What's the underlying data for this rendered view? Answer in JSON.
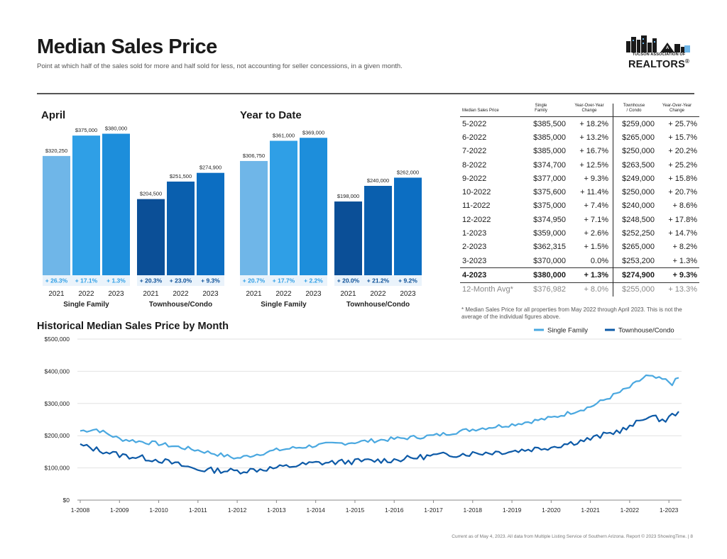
{
  "page": {
    "title": "Median Sales Price",
    "subtitle": "Point at which half of the sales sold for more and half sold for less, not accounting for seller concessions, in a given month.",
    "logo_line1": "TUCSON ASSOCIATION OF",
    "logo_line2": "REALTORS",
    "logo_mark": "®",
    "footer": "Current as of May 4, 2023. All data from Multiple Listing Service of Southern Arizona. Report © 2023 ShowingTime. | 8"
  },
  "colors": {
    "sf_light": "#6fb6e8",
    "sf_mid": "#2f9fe6",
    "sf_dark": "#1d8edb",
    "tc_dark": "#0b4f97",
    "tc_mid": "#0a5fae",
    "tc_light": "#0c6ec2",
    "sf_line": "#4aa8e0",
    "tc_line": "#0d5aa7"
  },
  "chart_data": [
    {
      "type": "bar",
      "title": "April",
      "groups": [
        {
          "name": "Single Family",
          "categories": [
            "2021",
            "2022",
            "2023"
          ],
          "values": [
            320250,
            375000,
            380000
          ],
          "labels": [
            "$320,250",
            "$375,000",
            "$380,000"
          ],
          "changes": [
            "+ 26.3%",
            "+ 17.1%",
            "+ 1.3%"
          ]
        },
        {
          "name": "Townhouse/Condo",
          "categories": [
            "2021",
            "2022",
            "2023"
          ],
          "values": [
            204500,
            251500,
            274900
          ],
          "labels": [
            "$204,500",
            "$251,500",
            "$274,900"
          ],
          "changes": [
            "+ 20.3%",
            "+ 23.0%",
            "+ 9.3%"
          ]
        }
      ]
    },
    {
      "type": "bar",
      "title": "Year to Date",
      "groups": [
        {
          "name": "Single Family",
          "categories": [
            "2021",
            "2022",
            "2023"
          ],
          "values": [
            306750,
            361000,
            369000
          ],
          "labels": [
            "$306,750",
            "$361,000",
            "$369,000"
          ],
          "changes": [
            "+ 20.7%",
            "+ 17.7%",
            "+ 2.2%"
          ]
        },
        {
          "name": "Townhouse/Condo",
          "categories": [
            "2021",
            "2022",
            "2023"
          ],
          "values": [
            198000,
            240000,
            262000
          ],
          "labels": [
            "$198,000",
            "$240,000",
            "$262,000"
          ],
          "changes": [
            "+ 20.0%",
            "+ 21.2%",
            "+ 9.2%"
          ]
        }
      ]
    },
    {
      "type": "table",
      "headers": [
        [
          "Median Sales Price"
        ],
        [
          "Single",
          "Family"
        ],
        [
          "Year-Over-Year",
          "Change"
        ],
        [
          "Townhouse",
          "/ Condo"
        ],
        [
          "Year-Over-Year",
          "Change"
        ]
      ],
      "rows": [
        [
          "5-2022",
          "$385,500",
          "+ 18.2%",
          "$259,000",
          "+ 25.7%"
        ],
        [
          "6-2022",
          "$385,000",
          "+ 13.2%",
          "$265,000",
          "+ 15.7%"
        ],
        [
          "7-2022",
          "$385,000",
          "+ 16.7%",
          "$250,000",
          "+ 20.2%"
        ],
        [
          "8-2022",
          "$374,700",
          "+ 12.5%",
          "$263,500",
          "+ 25.2%"
        ],
        [
          "9-2022",
          "$377,000",
          "+ 9.3%",
          "$249,000",
          "+ 15.8%"
        ],
        [
          "10-2022",
          "$375,600",
          "+ 11.4%",
          "$250,000",
          "+ 20.7%"
        ],
        [
          "11-2022",
          "$375,000",
          "+ 7.4%",
          "$240,000",
          "+ 8.6%"
        ],
        [
          "12-2022",
          "$374,950",
          "+ 7.1%",
          "$248,500",
          "+ 17.8%"
        ],
        [
          "1-2023",
          "$359,000",
          "+ 2.6%",
          "$252,250",
          "+ 14.7%"
        ],
        [
          "2-2023",
          "$362,315",
          "+ 1.5%",
          "$265,000",
          "+ 8.2%"
        ],
        [
          "3-2023",
          "$370,000",
          "0.0%",
          "$253,200",
          "+ 1.3%"
        ],
        [
          "4-2023",
          "$380,000",
          "+ 1.3%",
          "$274,900",
          "+ 9.3%"
        ],
        [
          "12-Month Avg*",
          "$376,982",
          "+ 8.0%",
          "$255,000",
          "+ 13.3%"
        ]
      ],
      "note": "* Median Sales Price for all properties from May 2022 through April 2023. This is not the average of the individual figures above."
    },
    {
      "type": "line",
      "title": "Historical Median Sales Price by Month",
      "ylim": [
        0,
        500000
      ],
      "yticks": [
        0,
        100000,
        200000,
        300000,
        400000,
        500000
      ],
      "ytick_labels": [
        "$0",
        "$100,000",
        "$200,000",
        "$300,000",
        "$400,000",
        "$500,000"
      ],
      "xlim": [
        "1-2008",
        "4-2023"
      ],
      "xticks": [
        "1-2008",
        "1-2009",
        "1-2010",
        "1-2011",
        "1-2012",
        "1-2013",
        "1-2014",
        "1-2015",
        "1-2016",
        "1-2017",
        "1-2018",
        "1-2019",
        "1-2020",
        "1-2021",
        "1-2022",
        "1-2023"
      ],
      "legend": "top-right",
      "series": [
        {
          "name": "Single Family",
          "anchors": [
            [
              "1-2008",
              215000
            ],
            [
              "6-2008",
              220000
            ],
            [
              "1-2009",
              190000
            ],
            [
              "1-2010",
              175000
            ],
            [
              "1-2011",
              155000
            ],
            [
              "1-2012",
              130000
            ],
            [
              "1-2013",
              155000
            ],
            [
              "1-2014",
              170000
            ],
            [
              "1-2015",
              180000
            ],
            [
              "1-2016",
              190000
            ],
            [
              "1-2017",
              200000
            ],
            [
              "1-2018",
              220000
            ],
            [
              "1-2019",
              235000
            ],
            [
              "1-2020",
              255000
            ],
            [
              "1-2021",
              290000
            ],
            [
              "1-2022",
              350000
            ],
            [
              "6-2022",
              385000
            ],
            [
              "12-2022",
              372000
            ],
            [
              "2-2023",
              362000
            ],
            [
              "4-2023",
              380000
            ]
          ]
        },
        {
          "name": "Townhouse/Condo",
          "anchors": [
            [
              "1-2008",
              170000
            ],
            [
              "1-2009",
              140000
            ],
            [
              "1-2010",
              125000
            ],
            [
              "1-2011",
              95000
            ],
            [
              "1-2012",
              90000
            ],
            [
              "1-2013",
              100000
            ],
            [
              "1-2014",
              115000
            ],
            [
              "1-2015",
              120000
            ],
            [
              "1-2016",
              125000
            ],
            [
              "1-2017",
              138000
            ],
            [
              "1-2018",
              145000
            ],
            [
              "1-2019",
              152000
            ],
            [
              "1-2020",
              165000
            ],
            [
              "1-2021",
              190000
            ],
            [
              "1-2022",
              225000
            ],
            [
              "6-2022",
              260000
            ],
            [
              "12-2022",
              248000
            ],
            [
              "2-2023",
              263000
            ],
            [
              "4-2023",
              275000
            ]
          ]
        }
      ]
    }
  ]
}
